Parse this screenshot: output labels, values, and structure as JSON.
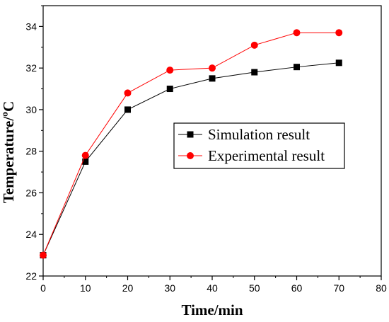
{
  "chart_data": {
    "type": "line",
    "xlabel": "Time/min",
    "ylabel": "Temperature/ºC",
    "xlim": [
      0,
      80
    ],
    "ylim": [
      22,
      35
    ],
    "x_ticks": [
      "0",
      "10",
      "20",
      "30",
      "40",
      "50",
      "60",
      "70",
      "80"
    ],
    "y_ticks": [
      "22",
      "24",
      "26",
      "28",
      "30",
      "32",
      "34"
    ],
    "grid": false,
    "legend_position": "center-right",
    "x": [
      0,
      10,
      20,
      30,
      40,
      50,
      60,
      70
    ],
    "series": [
      {
        "name": "Simulation result",
        "values": [
          23.0,
          27.5,
          30.0,
          31.0,
          31.5,
          31.8,
          32.05,
          32.25
        ],
        "color": "#000000",
        "marker": "square"
      },
      {
        "name": "Experimental result",
        "values": [
          23.0,
          27.8,
          30.8,
          31.9,
          32.0,
          33.1,
          33.7,
          33.7
        ],
        "color": "#ff0000",
        "marker": "circle"
      }
    ]
  }
}
